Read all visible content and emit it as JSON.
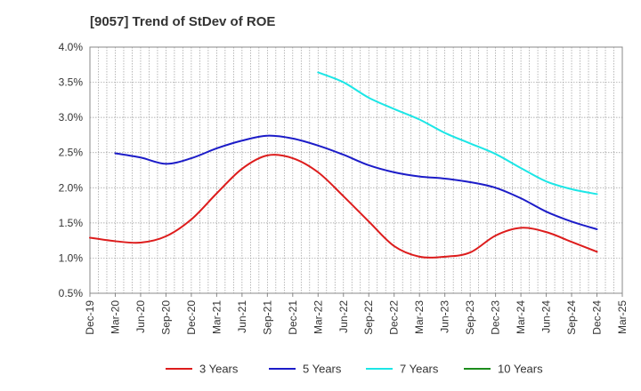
{
  "chart_data": {
    "type": "line",
    "title": "[9057]  Trend of StDev of ROE",
    "xlabel": "",
    "ylabel": "",
    "x_ticks": [
      "Dec-19",
      "Mar-20",
      "Jun-20",
      "Sep-20",
      "Dec-20",
      "Mar-21",
      "Jun-21",
      "Sep-21",
      "Dec-21",
      "Mar-22",
      "Jun-22",
      "Sep-22",
      "Dec-22",
      "Mar-23",
      "Jun-23",
      "Sep-23",
      "Dec-23",
      "Mar-24",
      "Jun-24",
      "Sep-24",
      "Dec-24",
      "Mar-25"
    ],
    "y_ticks": [
      "0.5%",
      "1.0%",
      "1.5%",
      "2.0%",
      "2.5%",
      "3.0%",
      "3.5%",
      "4.0%"
    ],
    "ylim": [
      0.5,
      4.0
    ],
    "grid": true,
    "legend_position": "bottom",
    "series": [
      {
        "name": "3 Years",
        "color": "#dd1c1c",
        "points": [
          [
            0,
            1.29
          ],
          [
            1,
            1.24
          ],
          [
            2,
            1.22
          ],
          [
            3,
            1.31
          ],
          [
            4,
            1.55
          ],
          [
            5,
            1.92
          ],
          [
            6,
            2.27
          ],
          [
            7,
            2.46
          ],
          [
            8,
            2.42
          ],
          [
            9,
            2.22
          ],
          [
            10,
            1.88
          ],
          [
            11,
            1.52
          ],
          [
            12,
            1.17
          ],
          [
            13,
            1.02
          ],
          [
            14,
            1.02
          ],
          [
            15,
            1.08
          ],
          [
            16,
            1.32
          ],
          [
            17,
            1.43
          ],
          [
            18,
            1.37
          ],
          [
            19,
            1.23
          ],
          [
            20,
            1.09
          ]
        ]
      },
      {
        "name": "5 Years",
        "color": "#1c1cc8",
        "points": [
          [
            1,
            2.49
          ],
          [
            2,
            2.43
          ],
          [
            3,
            2.34
          ],
          [
            4,
            2.42
          ],
          [
            5,
            2.56
          ],
          [
            6,
            2.67
          ],
          [
            7,
            2.74
          ],
          [
            8,
            2.7
          ],
          [
            9,
            2.6
          ],
          [
            10,
            2.47
          ],
          [
            11,
            2.32
          ],
          [
            12,
            2.22
          ],
          [
            13,
            2.16
          ],
          [
            14,
            2.13
          ],
          [
            15,
            2.08
          ],
          [
            16,
            2.0
          ],
          [
            17,
            1.85
          ],
          [
            18,
            1.66
          ],
          [
            19,
            1.52
          ],
          [
            20,
            1.41
          ]
        ]
      },
      {
        "name": "7 Years",
        "color": "#1ce6e6",
        "points": [
          [
            9,
            3.64
          ],
          [
            10,
            3.5
          ],
          [
            11,
            3.28
          ],
          [
            12,
            3.12
          ],
          [
            13,
            2.97
          ],
          [
            14,
            2.78
          ],
          [
            15,
            2.63
          ],
          [
            16,
            2.48
          ],
          [
            17,
            2.28
          ],
          [
            18,
            2.09
          ],
          [
            19,
            1.98
          ],
          [
            20,
            1.91
          ]
        ]
      },
      {
        "name": "10 Years",
        "color": "#1c8c1c",
        "points": []
      }
    ]
  }
}
